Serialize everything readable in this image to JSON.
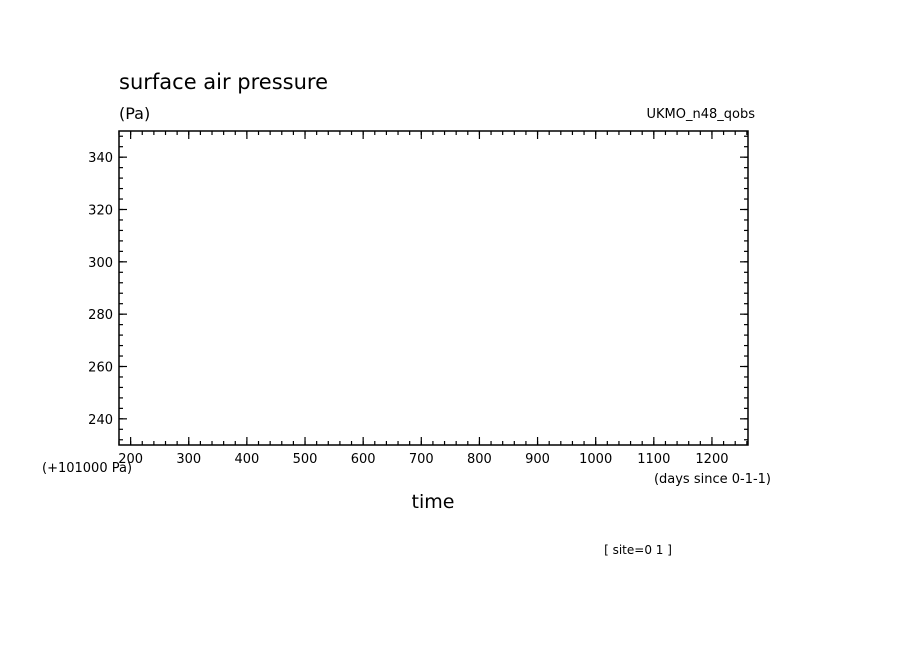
{
  "chart_data": {
    "type": "line",
    "title": "surface air pressure",
    "ylabel": "(Pa)",
    "dataset": "UKMO_n48_qobs",
    "y_offset_label": "(+101000 Pa)",
    "xlabel": "time",
    "x_units": "(days since 0-1-1)",
    "footer": "[ site=0 1 ]",
    "xlim": [
      180,
      1262
    ],
    "ylim": [
      230,
      350
    ],
    "x_ticks": [
      200,
      300,
      400,
      500,
      600,
      700,
      800,
      900,
      1000,
      1100,
      1200
    ],
    "y_ticks": [
      240,
      260,
      280,
      300,
      320,
      340
    ],
    "x_minor_step": 20,
    "y_minor_step": 4,
    "grid": false,
    "series": []
  }
}
